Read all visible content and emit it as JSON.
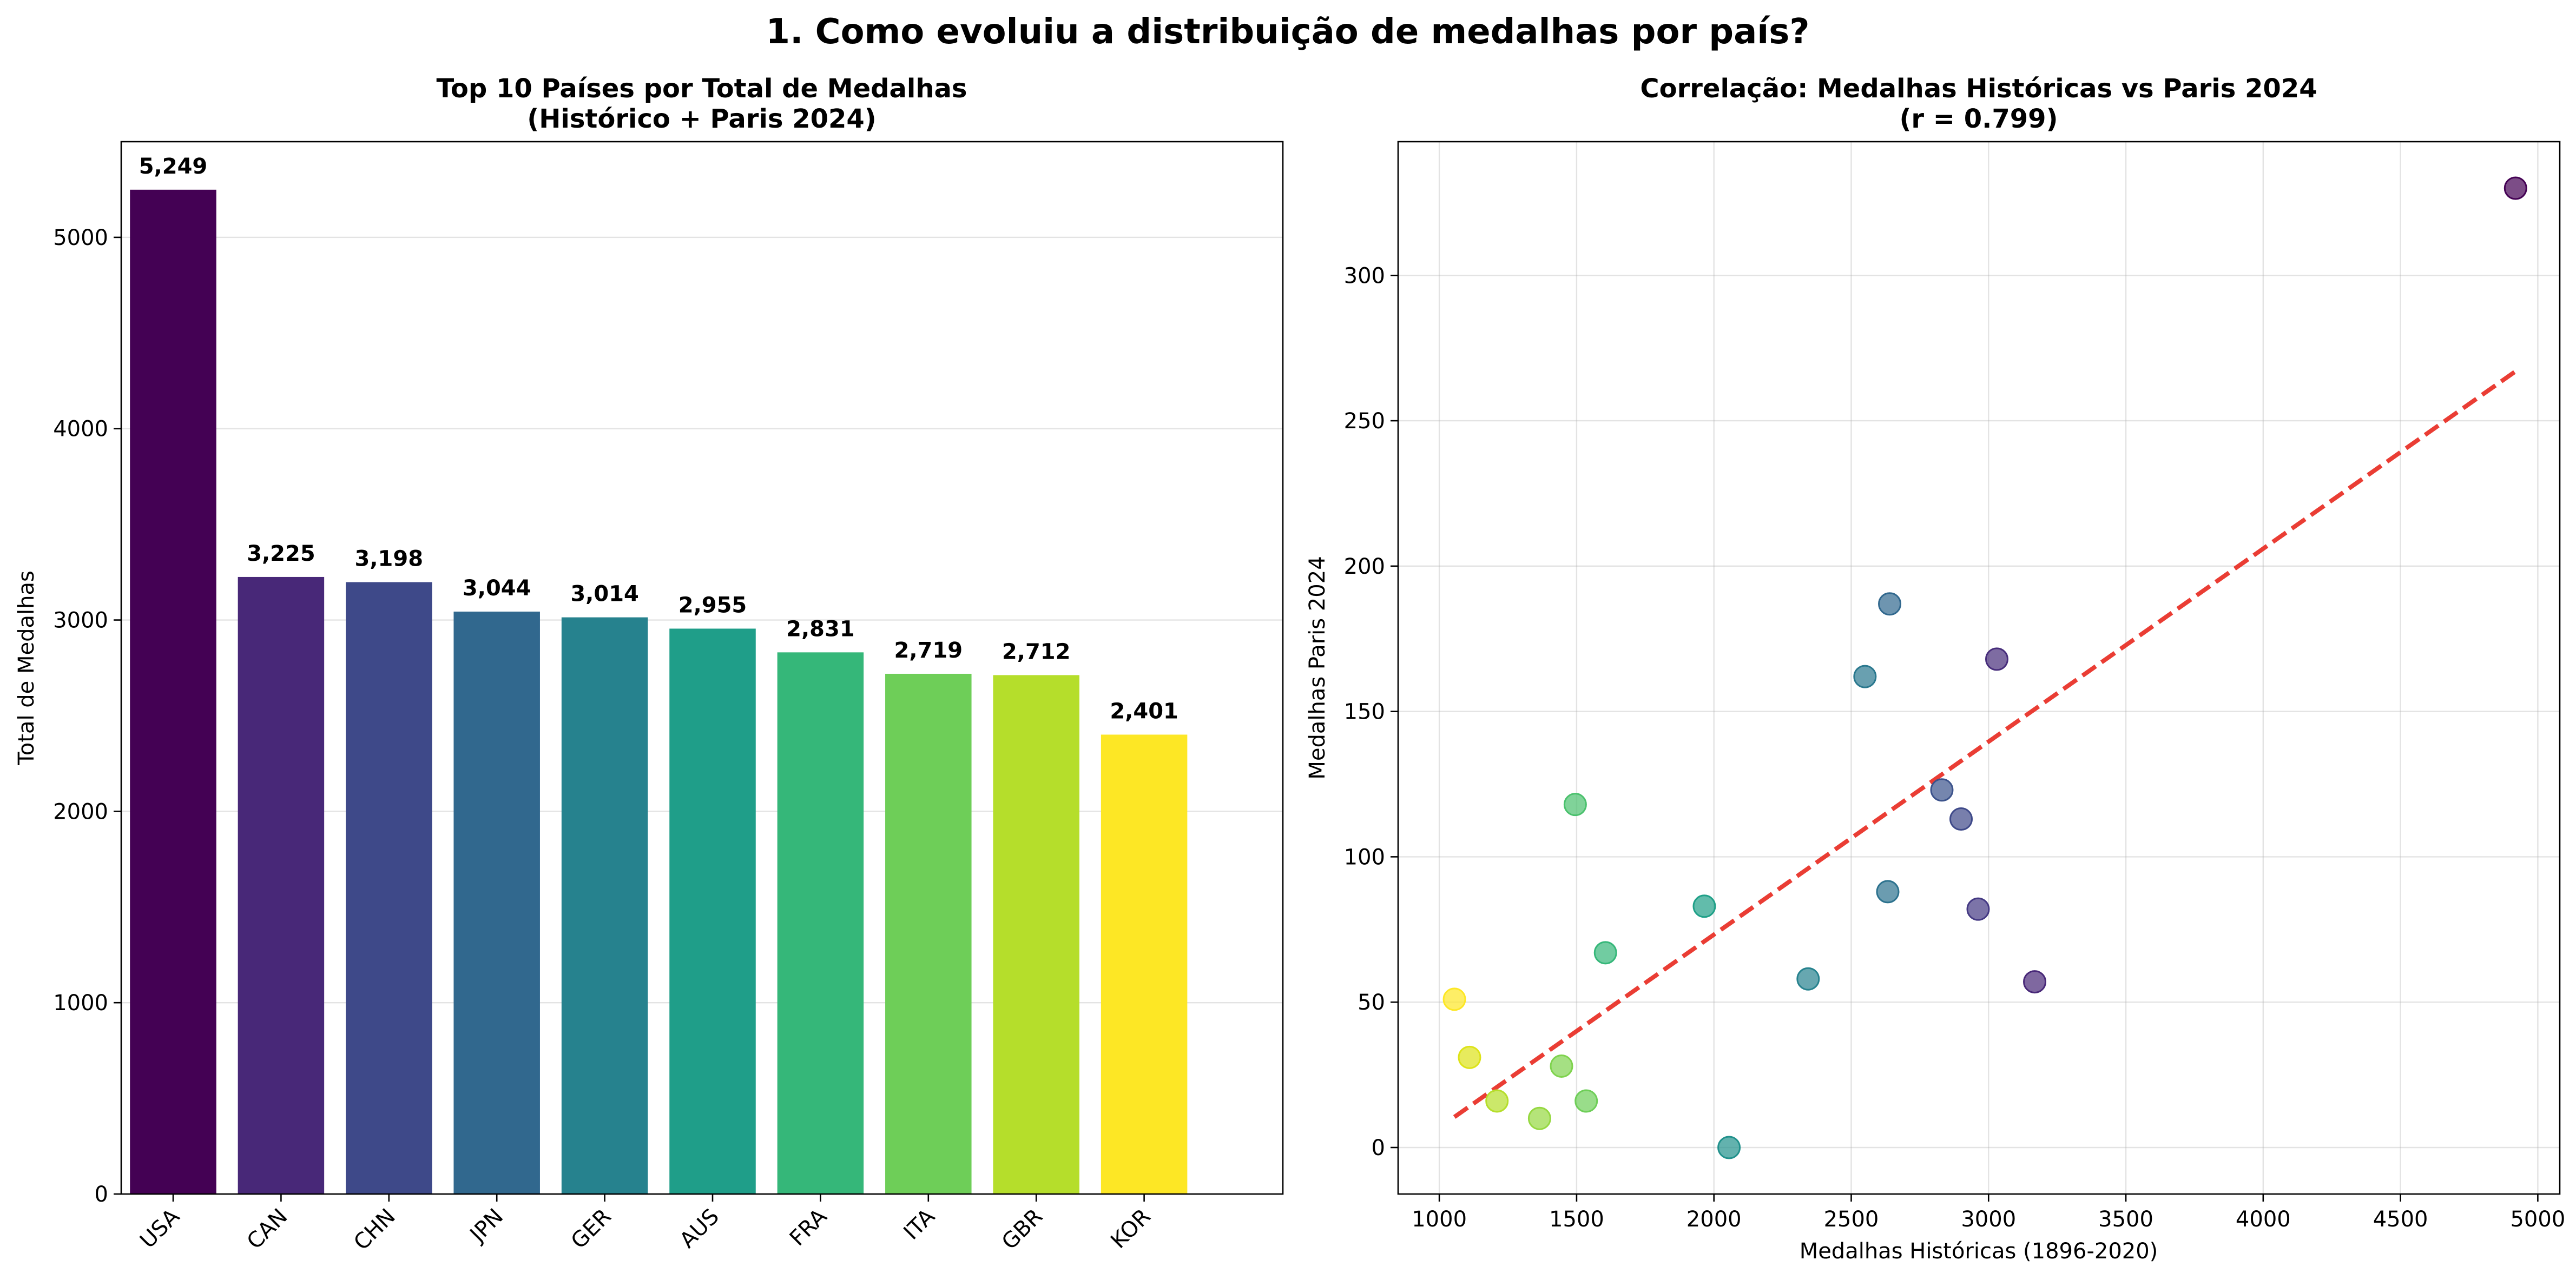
{
  "suptitle": "1. Como evoluiu a distribuição de medalhas por país?",
  "chart_data": [
    {
      "type": "bar",
      "title_line1": "Top 10 Países por Total de Medalhas",
      "title_line2": "(Histórico + Paris 2024)",
      "xlabel": "",
      "ylabel": "Total de Medalhas",
      "ylim": [
        0,
        5500
      ],
      "yticks": [
        0,
        1000,
        2000,
        3000,
        4000,
        5000
      ],
      "grid": "y",
      "categories": [
        "USA",
        "CAN",
        "CHN",
        "JPN",
        "GER",
        "AUS",
        "FRA",
        "ITA",
        "GBR",
        "KOR"
      ],
      "values": [
        5249,
        3225,
        3198,
        3044,
        3014,
        2955,
        2831,
        2719,
        2712,
        2401
      ],
      "value_labels": [
        "5,249",
        "3,225",
        "3,198",
        "3,044",
        "3,014",
        "2,955",
        "2,831",
        "2,719",
        "2,712",
        "2,401"
      ],
      "colors": [
        "#440154",
        "#482878",
        "#3e4989",
        "#31688e",
        "#26828e",
        "#1f9e89",
        "#35b779",
        "#6ece58",
        "#b5de2b",
        "#fde725"
      ]
    },
    {
      "type": "scatter",
      "title_line1": "Correlação: Medalhas Históricas vs Paris 2024",
      "title_line2": "(r = 0.799)",
      "xlabel": "Medalhas Históricas (1896-2020)",
      "ylabel": "Medalhas Paris 2024",
      "xlim": [
        850,
        5080
      ],
      "ylim": [
        -16,
        346
      ],
      "xticks": [
        1000,
        1500,
        2000,
        2500,
        3000,
        3500,
        4000,
        4500,
        5000
      ],
      "yticks": [
        0,
        50,
        100,
        150,
        200,
        250,
        300
      ],
      "grid": "both",
      "points": [
        {
          "x": 4919,
          "y": 330,
          "color": "#440154"
        },
        {
          "x": 3168,
          "y": 57,
          "color": "#482878"
        },
        {
          "x": 3030,
          "y": 168,
          "color": "#472d7b"
        },
        {
          "x": 2962,
          "y": 82,
          "color": "#443983"
        },
        {
          "x": 2900,
          "y": 113,
          "color": "#3e4989"
        },
        {
          "x": 2830,
          "y": 123,
          "color": "#3b528b"
        },
        {
          "x": 2640,
          "y": 187,
          "color": "#31688e"
        },
        {
          "x": 2633,
          "y": 88,
          "color": "#2c728e"
        },
        {
          "x": 2550,
          "y": 162,
          "color": "#2a788e"
        },
        {
          "x": 2343,
          "y": 58,
          "color": "#26828e"
        },
        {
          "x": 2055,
          "y": 0,
          "color": "#21918c"
        },
        {
          "x": 1965,
          "y": 83,
          "color": "#1fa088"
        },
        {
          "x": 1605,
          "y": 67,
          "color": "#35b779"
        },
        {
          "x": 1495,
          "y": 118,
          "color": "#4ac16d"
        },
        {
          "x": 1535,
          "y": 16,
          "color": "#6ece58"
        },
        {
          "x": 1445,
          "y": 28,
          "color": "#7fd34e"
        },
        {
          "x": 1365,
          "y": 10,
          "color": "#95d840"
        },
        {
          "x": 1210,
          "y": 16,
          "color": "#b5de2b"
        },
        {
          "x": 1110,
          "y": 31,
          "color": "#dde318"
        },
        {
          "x": 1055,
          "y": 51,
          "color": "#fde725"
        }
      ],
      "trendline": {
        "x": [
          1055,
          4919
        ],
        "y": [
          10.5,
          267
        ],
        "color": "#e8281e",
        "style": "dashed"
      }
    }
  ]
}
